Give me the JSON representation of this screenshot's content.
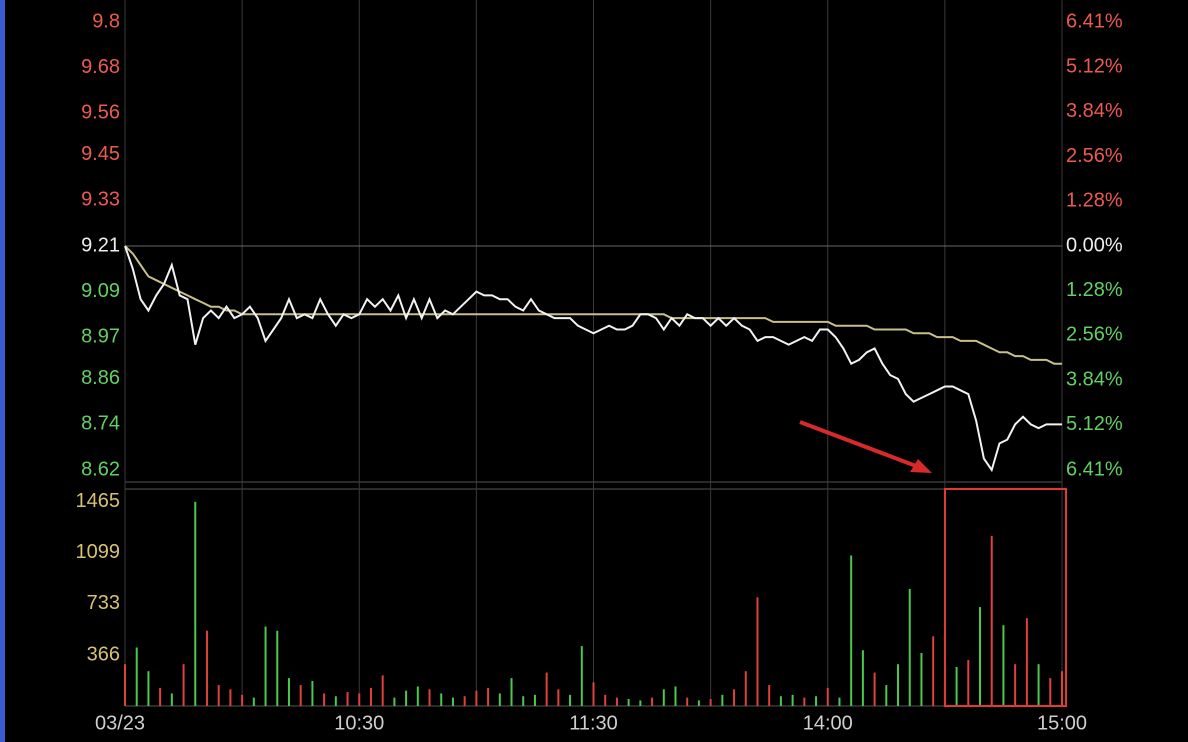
{
  "chart_data": [
    {
      "type": "line",
      "x": [
        0,
        2,
        4,
        6,
        8,
        10,
        12,
        14,
        16,
        18,
        20,
        22,
        24,
        26,
        28,
        30,
        32,
        34,
        36,
        38,
        40,
        42,
        44,
        46,
        48,
        50,
        52,
        54,
        56,
        58,
        60,
        62,
        64,
        66,
        68,
        70,
        72,
        74,
        76,
        78,
        80,
        82,
        84,
        86,
        88,
        90,
        92,
        94,
        96,
        98,
        100,
        102,
        104,
        106,
        108,
        110,
        112,
        114,
        116,
        118,
        120,
        122,
        124,
        126,
        128,
        130,
        132,
        134,
        136,
        138,
        140,
        142,
        144,
        146,
        148,
        150,
        152,
        154,
        156,
        158,
        160,
        162,
        164,
        166,
        168,
        170,
        172,
        174,
        176,
        178,
        180,
        182,
        184,
        186,
        188,
        190,
        192,
        194,
        196,
        198,
        200,
        202,
        204,
        206,
        208,
        210,
        212,
        214,
        216,
        218,
        220,
        222,
        224,
        226,
        228,
        230,
        232,
        234,
        236,
        238,
        240
      ],
      "series": [
        {
          "color": "#f2f2f2",
          "values": [
            9.21,
            9.15,
            9.07,
            9.04,
            9.08,
            9.11,
            9.16,
            9.08,
            9.07,
            8.95,
            9.02,
            9.04,
            9.02,
            9.05,
            9.02,
            9.03,
            9.05,
            9.02,
            8.96,
            8.99,
            9.02,
            9.07,
            9.02,
            9.03,
            9.02,
            9.07,
            9.03,
            9.0,
            9.03,
            9.02,
            9.03,
            9.07,
            9.05,
            9.07,
            9.04,
            9.08,
            9.02,
            9.07,
            9.02,
            9.07,
            9.02,
            9.04,
            9.03,
            9.05,
            9.07,
            9.09,
            9.08,
            9.08,
            9.07,
            9.07,
            9.05,
            9.04,
            9.07,
            9.04,
            9.03,
            9.02,
            9.02,
            9.02,
            9.0,
            8.99,
            8.98,
            8.99,
            9.0,
            8.99,
            8.99,
            9.0,
            9.03,
            9.03,
            9.02,
            8.99,
            9.02,
            9.0,
            9.03,
            9.02,
            9.02,
            9.0,
            9.02,
            9.0,
            9.02,
            9.0,
            8.99,
            8.96,
            8.97,
            8.97,
            8.96,
            8.95,
            8.96,
            8.97,
            8.96,
            8.99,
            8.99,
            8.97,
            8.94,
            8.9,
            8.91,
            8.93,
            8.94,
            8.9,
            8.87,
            8.86,
            8.82,
            8.8,
            8.81,
            8.82,
            8.83,
            8.84,
            8.84,
            8.83,
            8.82,
            8.75,
            8.65,
            8.62,
            8.69,
            8.7,
            8.74,
            8.76,
            8.74,
            8.73,
            8.74,
            8.74,
            8.74
          ]
        },
        {
          "color": "#c8bf8a",
          "values": [
            9.21,
            9.19,
            9.16,
            9.13,
            9.12,
            9.11,
            9.1,
            9.09,
            9.08,
            9.07,
            9.06,
            9.05,
            9.05,
            9.04,
            9.04,
            9.03,
            9.03,
            9.03,
            9.03,
            9.03,
            9.03,
            9.03,
            9.03,
            9.03,
            9.03,
            9.03,
            9.03,
            9.03,
            9.03,
            9.03,
            9.03,
            9.03,
            9.03,
            9.03,
            9.03,
            9.03,
            9.03,
            9.03,
            9.03,
            9.03,
            9.03,
            9.03,
            9.03,
            9.03,
            9.03,
            9.03,
            9.03,
            9.03,
            9.03,
            9.03,
            9.03,
            9.03,
            9.03,
            9.03,
            9.03,
            9.03,
            9.03,
            9.03,
            9.03,
            9.03,
            9.03,
            9.03,
            9.03,
            9.03,
            9.03,
            9.03,
            9.03,
            9.03,
            9.03,
            9.03,
            9.02,
            9.02,
            9.02,
            9.02,
            9.02,
            9.02,
            9.02,
            9.02,
            9.02,
            9.02,
            9.02,
            9.02,
            9.02,
            9.01,
            9.01,
            9.01,
            9.01,
            9.01,
            9.01,
            9.01,
            9.01,
            9.0,
            9.0,
            9.0,
            9.0,
            9.0,
            8.99,
            8.99,
            8.99,
            8.99,
            8.99,
            8.98,
            8.98,
            8.98,
            8.97,
            8.97,
            8.97,
            8.96,
            8.96,
            8.96,
            8.95,
            8.94,
            8.93,
            8.93,
            8.92,
            8.92,
            8.91,
            8.91,
            8.91,
            8.9,
            8.9
          ]
        }
      ],
      "xlim": [
        0,
        240
      ],
      "ylim": [
        8.62,
        9.8
      ],
      "yticks": [
        9.8,
        9.68,
        9.56,
        9.45,
        9.33,
        9.21,
        9.09,
        8.97,
        8.86,
        8.74,
        8.62
      ],
      "y2lim": [
        -6.41,
        6.41
      ],
      "y2ticks": [
        {
          "value": 6.41,
          "label": "6.41%"
        },
        {
          "value": 5.12,
          "label": "5.12%"
        },
        {
          "value": 3.84,
          "label": "3.84%"
        },
        {
          "value": 2.56,
          "label": "2.56%"
        },
        {
          "value": 1.28,
          "label": "1.28%"
        },
        {
          "value": 0,
          "label": "0.00%"
        },
        {
          "value": -1.28,
          "label": "1.28%"
        },
        {
          "value": -2.56,
          "label": "2.56%"
        },
        {
          "value": -3.84,
          "label": "3.84%"
        },
        {
          "value": -5.12,
          "label": "5.12%"
        },
        {
          "value": -6.41,
          "label": "6.41%"
        }
      ]
    },
    {
      "type": "bar",
      "x": [
        0,
        3,
        6,
        9,
        12,
        15,
        18,
        21,
        24,
        27,
        30,
        33,
        36,
        39,
        42,
        45,
        48,
        51,
        54,
        57,
        60,
        63,
        66,
        69,
        72,
        75,
        78,
        81,
        84,
        87,
        90,
        93,
        96,
        99,
        102,
        105,
        108,
        111,
        114,
        117,
        120,
        123,
        126,
        129,
        132,
        135,
        138,
        141,
        144,
        147,
        150,
        153,
        156,
        159,
        162,
        165,
        168,
        171,
        174,
        177,
        180,
        183,
        186,
        189,
        192,
        195,
        198,
        201,
        204,
        207,
        210,
        213,
        216,
        219,
        222,
        225,
        228,
        231,
        234,
        237,
        240
      ],
      "values": [
        300,
        420,
        250,
        130,
        90,
        300,
        1465,
        540,
        150,
        120,
        80,
        60,
        570,
        540,
        200,
        150,
        180,
        90,
        70,
        100,
        90,
        130,
        220,
        60,
        110,
        140,
        120,
        90,
        60,
        70,
        110,
        130,
        90,
        200,
        70,
        80,
        240,
        120,
        80,
        430,
        170,
        80,
        60,
        50,
        40,
        60,
        120,
        140,
        60,
        40,
        50,
        80,
        120,
        250,
        780,
        150,
        70,
        80,
        60,
        70,
        130,
        60,
        1080,
        400,
        240,
        150,
        300,
        840,
        380,
        500,
        170,
        280,
        330,
        710,
        1220,
        580,
        300,
        630,
        300,
        200,
        250
      ],
      "colors": [
        "#e0413a",
        "#4cc84c",
        "#4cc84c",
        "#e0413a",
        "#4cc84c",
        "#e0413a",
        "#4cc84c",
        "#e0413a",
        "#e0413a",
        "#e0413a",
        "#e0413a",
        "#4cc84c",
        "#4cc84c",
        "#4cc84c",
        "#4cc84c",
        "#e0413a",
        "#4cc84c",
        "#e0413a",
        "#4cc84c",
        "#e0413a",
        "#e0413a",
        "#e0413a",
        "#e0413a",
        "#4cc84c",
        "#4cc84c",
        "#4cc84c",
        "#e0413a",
        "#4cc84c",
        "#4cc84c",
        "#e0413a",
        "#e0413a",
        "#e0413a",
        "#4cc84c",
        "#4cc84c",
        "#4cc84c",
        "#4cc84c",
        "#e0413a",
        "#e0413a",
        "#4cc84c",
        "#4cc84c",
        "#e0413a",
        "#e0413a",
        "#e0413a",
        "#4cc84c",
        "#4cc84c",
        "#e0413a",
        "#4cc84c",
        "#4cc84c",
        "#e0413a",
        "#4cc84c",
        "#e0413a",
        "#4cc84c",
        "#e0413a",
        "#e0413a",
        "#e0413a",
        "#e0413a",
        "#4cc84c",
        "#4cc84c",
        "#e0413a",
        "#4cc84c",
        "#e0413a",
        "#4cc84c",
        "#4cc84c",
        "#4cc84c",
        "#e0413a",
        "#4cc84c",
        "#4cc84c",
        "#4cc84c",
        "#4cc84c",
        "#e0413a",
        "#e0413a",
        "#4cc84c",
        "#e0413a",
        "#4cc84c",
        "#e0413a",
        "#4cc84c",
        "#e0413a",
        "#e0413a",
        "#4cc84c",
        "#e0413a",
        "#e0413a"
      ],
      "xlim": [
        0,
        240
      ],
      "xticks": [
        {
          "value": 0,
          "label": "03/23"
        },
        {
          "value": 60,
          "label": "10:30"
        },
        {
          "value": 120,
          "label": "11:30"
        },
        {
          "value": 180,
          "label": "14:00"
        },
        {
          "value": 240,
          "label": "15:00"
        }
      ],
      "ylim": [
        0,
        1550
      ],
      "yticks": [
        1465,
        1099,
        733,
        366
      ]
    }
  ]
}
